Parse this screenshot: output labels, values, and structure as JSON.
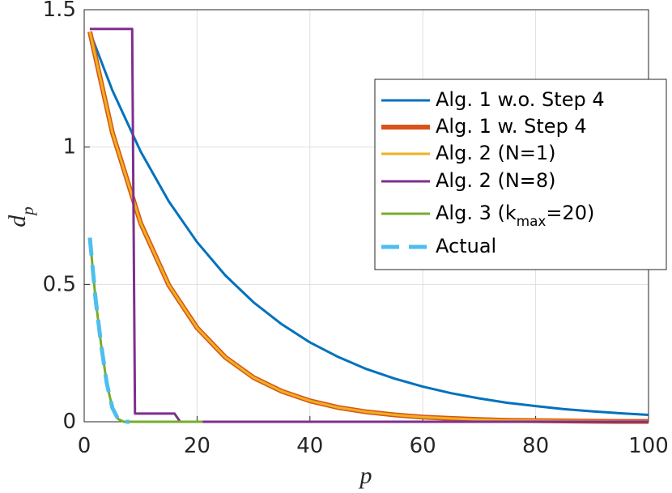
{
  "chart_data": {
    "type": "line",
    "x_label": "p",
    "y_label": "d_p",
    "xlim": [
      0,
      100
    ],
    "xticks": [
      0,
      20,
      40,
      60,
      80,
      100
    ],
    "ylim": [
      0,
      1.5
    ],
    "yticks": [
      0,
      0.5,
      1,
      1.5
    ],
    "grid": true,
    "legend_location": "northeast",
    "series": [
      {
        "name": "Alg. 1 w.o. Step 4",
        "color": "#0072BD",
        "x": [
          1,
          5,
          10,
          15,
          20,
          25,
          30,
          35,
          40,
          45,
          50,
          55,
          60,
          65,
          70,
          75,
          80,
          85,
          90,
          95,
          100
        ],
        "values": [
          1.42,
          1.206,
          0.984,
          0.802,
          0.654,
          0.533,
          0.435,
          0.355,
          0.289,
          0.236,
          0.192,
          0.157,
          0.128,
          0.104,
          0.085,
          0.069,
          0.057,
          0.046,
          0.038,
          0.031,
          0.025
        ]
      },
      {
        "name": "Alg. 1 w. Step 4",
        "color": "#D95319",
        "line_width": 6,
        "x": [
          1,
          5,
          10,
          15,
          20,
          25,
          30,
          35,
          40,
          45,
          50,
          55,
          60,
          65,
          70,
          75,
          80,
          85,
          90,
          95,
          100
        ],
        "values": [
          1.42,
          1.052,
          0.723,
          0.497,
          0.342,
          0.235,
          0.161,
          0.111,
          0.076,
          0.052,
          0.036,
          0.025,
          0.017,
          0.012,
          0.008,
          0.005,
          0.004,
          0.003,
          0.002,
          0.001,
          0.001
        ]
      },
      {
        "name": "Alg. 2 (N=1)",
        "color": "#EDB120",
        "line_width": 3,
        "x": [
          1,
          5,
          10,
          15,
          20,
          25,
          30,
          35,
          40,
          45,
          50,
          55,
          60,
          65,
          70,
          75,
          80,
          85,
          90,
          95,
          100
        ],
        "values": [
          1.42,
          1.052,
          0.723,
          0.497,
          0.342,
          0.235,
          0.161,
          0.111,
          0.076,
          0.052,
          0.036,
          0.025,
          0.017,
          0.012,
          0.008,
          0.005,
          0.004,
          0.003,
          0.002,
          0.001,
          0.001
        ]
      },
      {
        "name": "Alg. 2 (N=8)",
        "color": "#7E2F8E",
        "x": [
          1,
          8.5,
          9,
          16,
          17,
          100
        ],
        "values": [
          1.43,
          1.43,
          0.03,
          0.03,
          0,
          0
        ]
      },
      {
        "name": "Alg. 3 (k_{max}=20)",
        "color": "#77AC30",
        "x": [
          1,
          2,
          3,
          4,
          5,
          6,
          7,
          10,
          15,
          21
        ],
        "values": [
          0.67,
          0.45,
          0.28,
          0.14,
          0.05,
          0.01,
          0,
          0,
          0,
          0
        ]
      },
      {
        "name": "Actual",
        "color": "#4DBEEE",
        "line_style": "dashed",
        "line_width": 5,
        "x": [
          1,
          2,
          3,
          4,
          5,
          6,
          7,
          8
        ],
        "values": [
          0.67,
          0.45,
          0.28,
          0.14,
          0.05,
          0.01,
          0,
          0
        ]
      }
    ]
  }
}
